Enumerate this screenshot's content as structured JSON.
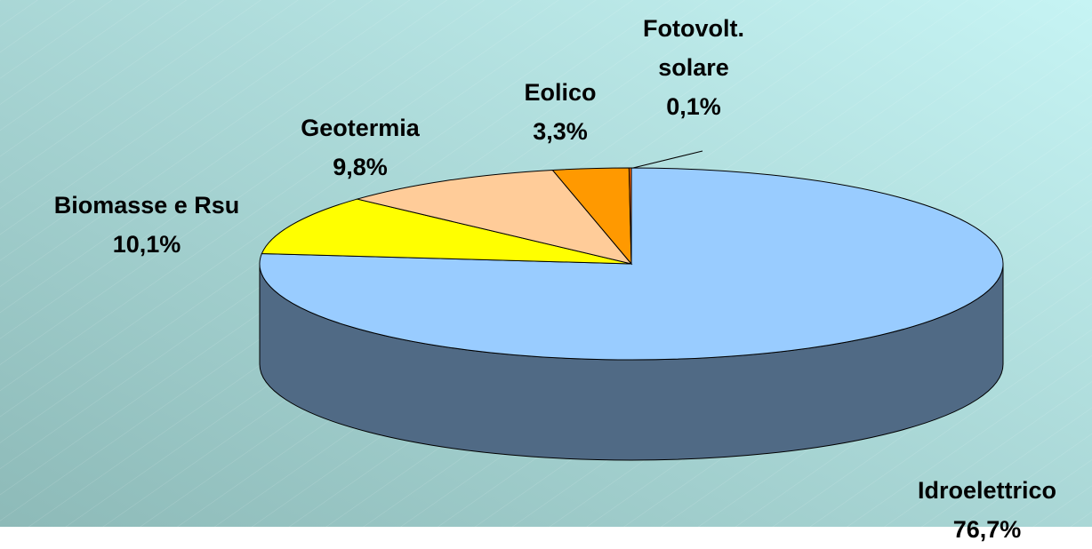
{
  "chart_data": {
    "type": "pie",
    "categories": [
      "Idroelettrico",
      "Biomasse e Rsu",
      "Geotermia",
      "Eolico",
      "Fotovolt. solare"
    ],
    "values": [
      76.7,
      10.1,
      9.8,
      3.3,
      0.1
    ],
    "value_labels": [
      "76,7%",
      "10,1%",
      "9,8%",
      "3,3%",
      "0,1%"
    ],
    "colors": [
      "#99ccff",
      "#ffff00",
      "#ffcc99",
      "#ff9900",
      "#ff6600"
    ]
  }
}
